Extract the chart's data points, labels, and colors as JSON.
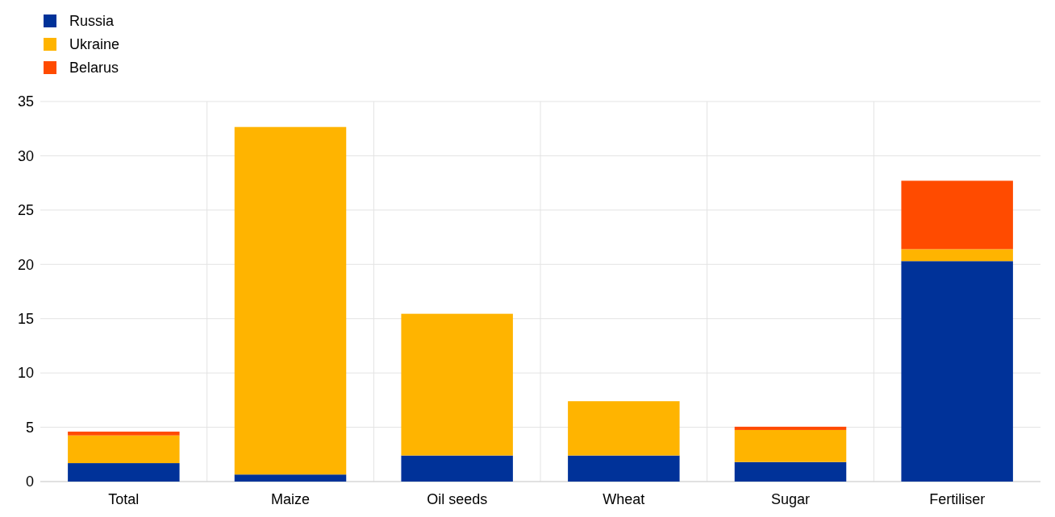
{
  "chart_data": {
    "type": "bar",
    "stacked": true,
    "categories": [
      "Total",
      "Maize",
      "Oil seeds",
      "Wheat",
      "Sugar",
      "Fertiliser"
    ],
    "series": [
      {
        "name": "Russia",
        "color": "#003299",
        "values": [
          1.7,
          0.65,
          2.4,
          2.4,
          1.8,
          20.3
        ]
      },
      {
        "name": "Ukraine",
        "color": "#ffb400",
        "values": [
          2.55,
          32.0,
          13.05,
          5.0,
          2.95,
          1.1
        ]
      },
      {
        "name": "Belarus",
        "color": "#ff4b00",
        "values": [
          0.35,
          0,
          0,
          0,
          0.3,
          6.3
        ]
      }
    ],
    "ylim": [
      0,
      35
    ],
    "yticks": [
      0,
      5,
      10,
      15,
      20,
      25,
      30,
      35
    ],
    "grid": true,
    "legend": "top left"
  }
}
